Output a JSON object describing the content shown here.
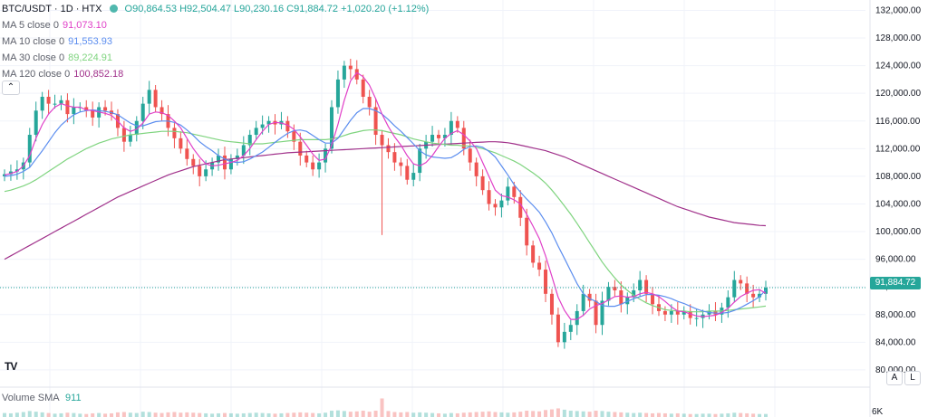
{
  "header": {
    "symbol": "BTC/USDT · 1D · HTX",
    "ohlc": "O90,864.53 H92,504.47 L90,230.16 C91,884.72 +1,020.20 (+1.12%)"
  },
  "indicators": [
    {
      "label": "MA 5 close 0",
      "value": "91,073.10",
      "color": "#e040c8"
    },
    {
      "label": "MA 10 close 0",
      "value": "91,553.93",
      "color": "#5b8def"
    },
    {
      "label": "MA 30 close 0",
      "value": "89,224.91",
      "color": "#7fd47f"
    },
    {
      "label": "MA 120 close 0",
      "value": "100,852.18",
      "color": "#a0308a"
    }
  ],
  "volume": {
    "label": "Volume SMA",
    "value": "911"
  },
  "volume_axis_label": "6K",
  "scale_buttons": {
    "auto": "A",
    "log": "L"
  },
  "collapse_icon": "chevron-up-icon",
  "logo": "TV",
  "last_price": "91,884.72",
  "colors": {
    "up": "#26a69a",
    "down": "#ef5350",
    "grid": "#f0f3fa"
  },
  "chart_data": {
    "type": "candlestick",
    "y_ticks": [
      "132,000.00",
      "128,000.00",
      "124,000.00",
      "120,000.00",
      "116,000.00",
      "112,000.00",
      "108,000.00",
      "104,000.00",
      "100,000.00",
      "96,000.00",
      "92,000.00",
      "88,000.00",
      "84,000.00",
      "80,000.00"
    ],
    "ylim": [
      77500,
      133500
    ],
    "last_close": 91884.72,
    "closes": [
      108300,
      108700,
      109000,
      110000,
      114000,
      117500,
      119500,
      118500,
      118500,
      119000,
      117000,
      118000,
      118000,
      117500,
      116500,
      118000,
      117500,
      117000,
      115000,
      113000,
      114000,
      116000,
      118500,
      120500,
      118000,
      117000,
      115000,
      113500,
      112000,
      110500,
      109500,
      108000,
      109000,
      110000,
      111000,
      109000,
      110500,
      111000,
      112500,
      114000,
      115000,
      115500,
      116000,
      115500,
      116000,
      114500,
      113000,
      111000,
      110000,
      109000,
      110000,
      112000,
      118000,
      122000,
      124000,
      123500,
      122000,
      119500,
      118000,
      114000,
      112500,
      111500,
      110000,
      109500,
      107500,
      108500,
      112000,
      113000,
      114000,
      113500,
      114000,
      116000,
      115000,
      112000,
      110000,
      108000,
      106000,
      104000,
      103500,
      104500,
      106500,
      105000,
      102000,
      98000,
      95500,
      94500,
      91000,
      88000,
      84000,
      85500,
      86500,
      88500,
      91000,
      90000,
      86500,
      90000,
      92000,
      91500,
      89500,
      90500,
      91500,
      93000,
      91000,
      89500,
      88500,
      88000,
      88500,
      88000,
      88500,
      87500,
      87500,
      88000,
      88500,
      88000,
      89000,
      90500,
      93000,
      92500,
      91000,
      90500,
      91000,
      91885
    ],
    "ma5": [
      108200,
      108400,
      108700,
      109500,
      111000,
      113500,
      115500,
      117000,
      118000,
      118500,
      118200,
      118000,
      118000,
      117600,
      117500,
      117300,
      117100,
      116800,
      116000,
      115000,
      114500,
      114800,
      115700,
      117000,
      117300,
      117200,
      116800,
      116000,
      115000,
      113500,
      112000,
      110800,
      109800,
      109500,
      109600,
      109800,
      110000,
      110300,
      111000,
      112000,
      113300,
      114500,
      115500,
      115800,
      115700,
      115400,
      114800,
      113700,
      112500,
      111200,
      110300,
      110500,
      112500,
      115500,
      119000,
      121800,
      123000,
      122400,
      121200,
      119200,
      117000,
      115200,
      113700,
      112500,
      111000,
      109800,
      109500,
      110000,
      111000,
      112300,
      113500,
      114200,
      114600,
      114000,
      113100,
      112000,
      110000,
      108000,
      106000,
      105200,
      105000,
      104600,
      104000,
      102500,
      100800,
      99000,
      96500,
      93500,
      90500,
      88600,
      87300,
      87300,
      87900,
      88800,
      89300,
      89600,
      90100,
      90600,
      90700,
      90500,
      90600,
      91000,
      91200,
      91000,
      90600,
      89900,
      89100,
      88500,
      88400,
      88100,
      87800,
      87700,
      87800,
      87900,
      88300,
      88900,
      89800,
      90600,
      91100,
      91500,
      91600,
      91073
    ],
    "ma10": [
      108000,
      108100,
      108300,
      108700,
      109300,
      110500,
      111700,
      113000,
      114300,
      115400,
      116200,
      116900,
      117300,
      117500,
      117600,
      117500,
      117400,
      117200,
      116900,
      116300,
      115700,
      115300,
      115300,
      115600,
      115900,
      116000,
      116000,
      115800,
      115400,
      114700,
      113900,
      113000,
      112300,
      111700,
      111000,
      110500,
      110100,
      110000,
      110100,
      110500,
      111000,
      111500,
      112200,
      112900,
      113600,
      114200,
      114600,
      114700,
      114500,
      113900,
      113300,
      112800,
      112800,
      113500,
      114800,
      116100,
      117200,
      117800,
      117800,
      117500,
      117000,
      116200,
      115300,
      114500,
      113600,
      112700,
      111700,
      111100,
      110800,
      110700,
      110600,
      110700,
      111200,
      111900,
      112300,
      112400,
      112200,
      111600,
      110800,
      109500,
      108200,
      106800,
      105700,
      104700,
      103800,
      102800,
      101400,
      99800,
      97900,
      96100,
      94300,
      92500,
      91000,
      90300,
      89900,
      89300,
      89200,
      89200,
      89500,
      89900,
      90300,
      90600,
      90900,
      90900,
      90800,
      90600,
      90300,
      89900,
      89600,
      89200,
      88800,
      88500,
      88300,
      88200,
      88200,
      88300,
      88600,
      89000,
      89500,
      90000,
      90600,
      91554
    ],
    "ma30": [
      105800,
      106000,
      106300,
      106600,
      107000,
      107500,
      108100,
      108700,
      109300,
      109900,
      110500,
      111000,
      111500,
      112000,
      112400,
      112800,
      113100,
      113400,
      113600,
      113800,
      114000,
      114100,
      114200,
      114300,
      114400,
      114500,
      114500,
      114500,
      114400,
      114300,
      114100,
      113900,
      113700,
      113500,
      113300,
      113100,
      113000,
      112900,
      112800,
      112700,
      112700,
      112700,
      112800,
      112900,
      113000,
      113100,
      113200,
      113300,
      113300,
      113300,
      113300,
      113300,
      113400,
      113600,
      113900,
      114200,
      114400,
      114600,
      114700,
      114700,
      114600,
      114400,
      114200,
      114000,
      113700,
      113400,
      113200,
      113000,
      112800,
      112700,
      112600,
      112500,
      112500,
      112400,
      112400,
      112200,
      112000,
      111700,
      111400,
      111000,
      110600,
      110200,
      109700,
      109100,
      108500,
      107800,
      107000,
      106000,
      104900,
      103700,
      102500,
      101200,
      99800,
      98400,
      97000,
      95600,
      94400,
      93300,
      92300,
      91500,
      90800,
      90200,
      89700,
      89300,
      89000,
      88700,
      88600,
      88500,
      88500,
      88400,
      88400,
      88400,
      88500,
      88500,
      88500,
      88600,
      88700,
      88800,
      88900,
      89000,
      89100,
      89225
    ],
    "ma120": [
      96000,
      96500,
      97000,
      97500,
      98000,
      98500,
      99000,
      99500,
      100000,
      100500,
      101000,
      101500,
      102000,
      102500,
      103000,
      103500,
      104000,
      104500,
      105000,
      105400,
      105800,
      106200,
      106600,
      107000,
      107400,
      107800,
      108200,
      108500,
      108800,
      109100,
      109400,
      109600,
      109800,
      110000,
      110200,
      110400,
      110500,
      110600,
      110700,
      110800,
      110900,
      111000,
      111100,
      111200,
      111300,
      111400,
      111450,
      111500,
      111550,
      111600,
      111650,
      111700,
      111750,
      111800,
      111850,
      111900,
      111950,
      112000,
      112050,
      112100,
      112150,
      112200,
      112250,
      112300,
      112350,
      112400,
      112450,
      112500,
      112550,
      112600,
      112650,
      112700,
      112750,
      112800,
      112850,
      112900,
      112950,
      113000,
      113000,
      112950,
      112850,
      112700,
      112500,
      112300,
      112100,
      111900,
      111700,
      111400,
      111100,
      110800,
      110400,
      110000,
      109600,
      109200,
      108800,
      108400,
      108000,
      107600,
      107200,
      106800,
      106400,
      106000,
      105600,
      105200,
      104800,
      104400,
      104000,
      103600,
      103300,
      103000,
      102700,
      102400,
      102100,
      101900,
      101700,
      101500,
      101300,
      101200,
      101100,
      101000,
      100900,
      100852
    ],
    "volumes": [
      1200,
      1100,
      1300,
      1500,
      1800,
      1600,
      1400,
      1200,
      1000,
      1100,
      1300,
      1200,
      1000,
      900,
      1100,
      1200,
      1000,
      1100,
      1400,
      1500,
      1300,
      1200,
      1600,
      1500,
      1300,
      1200,
      1400,
      1500,
      1300,
      1400,
      1300,
      1200,
      1100,
      1000,
      1100,
      1200,
      1100,
      1000,
      1100,
      1200,
      1300,
      1200,
      1100,
      1000,
      1100,
      1200,
      1300,
      1400,
      1300,
      1200,
      1100,
      1300,
      1900,
      2000,
      1800,
      1600,
      1700,
      1900,
      1600,
      1900,
      5600,
      1800,
      1500,
      1400,
      1500,
      1300,
      1400,
      1300,
      1200,
      1100,
      1000,
      1200,
      1100,
      1300,
      1400,
      1500,
      1600,
      1700,
      1500,
      1400,
      1300,
      1400,
      1600,
      1900,
      1800,
      1700,
      2100,
      2300,
      2600,
      2200,
      1900,
      1800,
      1700,
      1600,
      1900,
      1800,
      1600,
      1500,
      1400,
      1300,
      1200,
      1300,
      1200,
      1100,
      1200,
      1100,
      1000,
      1100,
      1000,
      900,
      900,
      1000,
      1000,
      900,
      1000,
      1100,
      1300,
      1200,
      1100,
      1000,
      900,
      911
    ]
  }
}
